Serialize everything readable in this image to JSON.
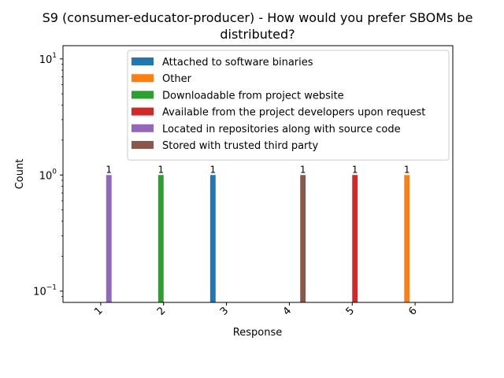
{
  "chart_data": {
    "type": "bar",
    "title_line1": "S9 (consumer-educator-producer) - How would you prefer SBOMs be",
    "title_line2": "distributed?",
    "xlabel": "Response",
    "ylabel": "Count",
    "yscale": "log",
    "ylim": [
      0.08,
      13
    ],
    "categories": [
      "1",
      "2",
      "3",
      "4",
      "5",
      "6"
    ],
    "y_ticks": [
      {
        "value": 0.1,
        "base": "10",
        "exp": "−1"
      },
      {
        "value": 1,
        "base": "10",
        "exp": "0"
      },
      {
        "value": 10,
        "base": "10",
        "exp": "1"
      }
    ],
    "legend_position": "top-right",
    "grid": false,
    "series": [
      {
        "name": "Attached to software binaries",
        "color": "#1f77b4",
        "values": [
          0,
          0,
          1,
          0,
          0,
          0
        ]
      },
      {
        "name": "Other",
        "color": "#ff7f0e",
        "values": [
          0,
          0,
          0,
          0,
          0,
          1
        ]
      },
      {
        "name": "Downloadable from project website",
        "color": "#2ca02c",
        "values": [
          0,
          1,
          0,
          0,
          0,
          0
        ]
      },
      {
        "name": "Available from the project developers upon request",
        "color": "#d62728",
        "values": [
          0,
          0,
          0,
          0,
          1,
          0
        ]
      },
      {
        "name": "Located in repositories along with source code",
        "color": "#9467bd",
        "values": [
          1,
          0,
          0,
          0,
          0,
          0
        ]
      },
      {
        "name": "Stored with trusted third party",
        "color": "#8c564b",
        "values": [
          0,
          0,
          0,
          1,
          0,
          0
        ]
      }
    ],
    "data_labels": [
      "1",
      "1",
      "1",
      "1",
      "1",
      "1"
    ]
  }
}
